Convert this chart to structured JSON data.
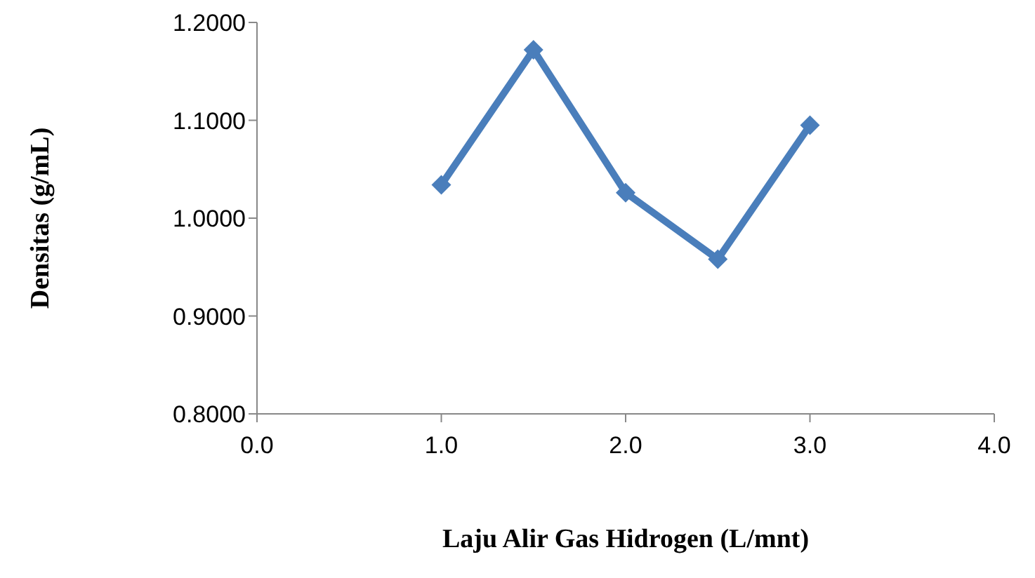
{
  "chart_data": {
    "type": "line",
    "xlabel": "Laju Alir Gas Hidrogen (L/mnt)",
    "ylabel": "Densitas (g/mL)",
    "x": [
      1,
      1.5,
      2,
      2.5,
      3
    ],
    "series": [
      {
        "color": "#4a7ebb",
        "values": [
          1.034,
          1.172,
          1.026,
          0.958,
          1.095
        ]
      }
    ],
    "xlim": [
      0,
      4
    ],
    "xticks": [
      {
        "value": 0,
        "label": "0.0"
      },
      {
        "value": 1,
        "label": "1.0"
      },
      {
        "value": 2,
        "label": "2.0"
      },
      {
        "value": 3,
        "label": "3.0"
      },
      {
        "value": 4,
        "label": "4.0"
      }
    ],
    "ylim": [
      0.8,
      1.2
    ],
    "yticks": [
      {
        "value": 0.8,
        "label": "0.8000"
      },
      {
        "value": 0.9,
        "label": "0.9000"
      },
      {
        "value": 1.0,
        "label": "1.0000"
      },
      {
        "value": 1.1,
        "label": "1.1000"
      },
      {
        "value": 1.2,
        "label": "1.2000"
      }
    ],
    "grid": false,
    "legend": false,
    "marker": "diamond",
    "line_style": "solid"
  }
}
